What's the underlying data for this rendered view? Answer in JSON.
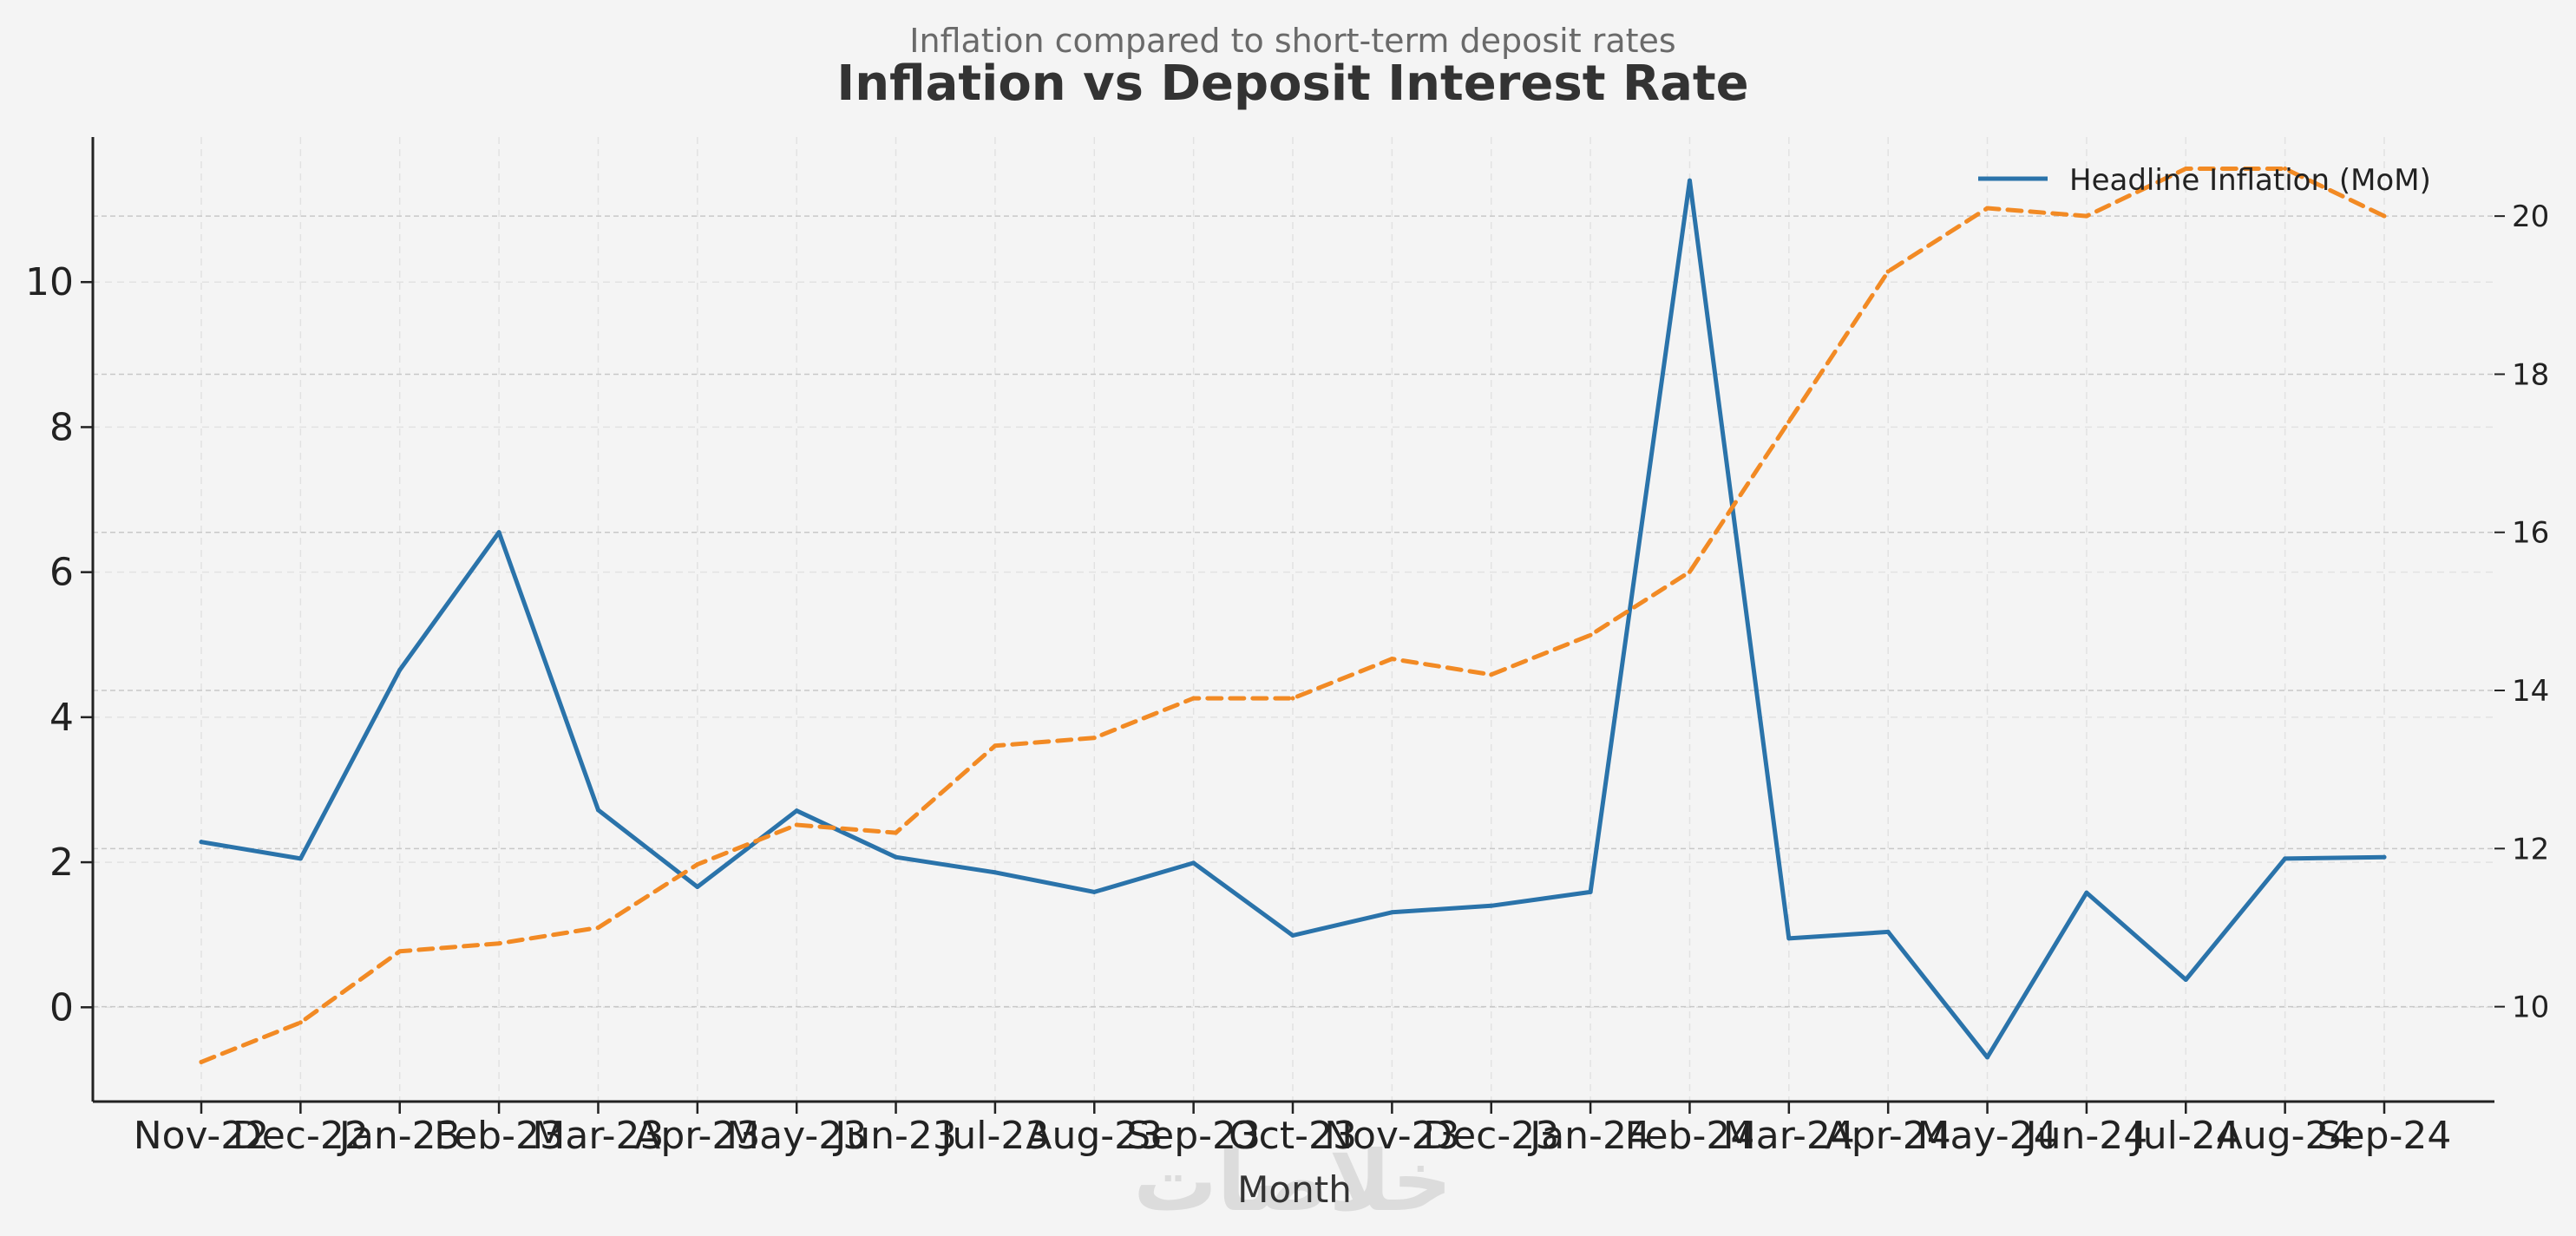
{
  "chart_data": {
    "type": "line",
    "title": "Inflation vs Deposit Interest Rate",
    "subtitle": "Inflation compared to short-term deposit rates",
    "xlabel": "Month",
    "ylabel": "",
    "ylabel_right": "",
    "watermark": "خلاصات",
    "categories": [
      "Nov-22",
      "Dec-22",
      "Jan-23",
      "Feb-23",
      "Mar-23",
      "Apr-23",
      "May-23",
      "Jun-23",
      "Jul-23",
      "Aug-23",
      "Sep-23",
      "Oct-23",
      "Nov-23",
      "Dec-23",
      "Jan-24",
      "Feb-24",
      "Mar-24",
      "Apr-24",
      "May-24",
      "Jun-24",
      "Jul-24",
      "Aug-24",
      "Sep-24"
    ],
    "ylim_left": [
      -1.3,
      12.0
    ],
    "yticks_left": [
      0,
      2,
      4,
      6,
      8,
      10
    ],
    "ylim_right": [
      8.8,
      21.0
    ],
    "yticks_right": [
      10,
      12,
      14,
      16,
      18,
      20
    ],
    "grid": true,
    "legend_position": "top-right",
    "series": [
      {
        "name": "Headline Inflation (MoM)",
        "axis": "left",
        "style": "solid",
        "color": "#2a73aa",
        "values": [
          2.28,
          2.05,
          4.65,
          6.55,
          2.72,
          1.66,
          2.71,
          2.07,
          1.86,
          1.59,
          1.99,
          0.99,
          1.31,
          1.4,
          1.59,
          11.4,
          0.95,
          1.04,
          -0.69,
          1.58,
          0.38,
          2.05,
          2.07
        ]
      },
      {
        "name": "",
        "axis": "right",
        "style": "dashed",
        "color": "#f28a24",
        "values": [
          9.3,
          9.8,
          10.7,
          10.8,
          11.0,
          11.8,
          12.3,
          12.2,
          13.3,
          13.4,
          13.9,
          13.9,
          14.4,
          14.2,
          14.7,
          15.5,
          17.4,
          19.3,
          20.1,
          20.0,
          20.6,
          20.6,
          20.0
        ]
      }
    ]
  }
}
